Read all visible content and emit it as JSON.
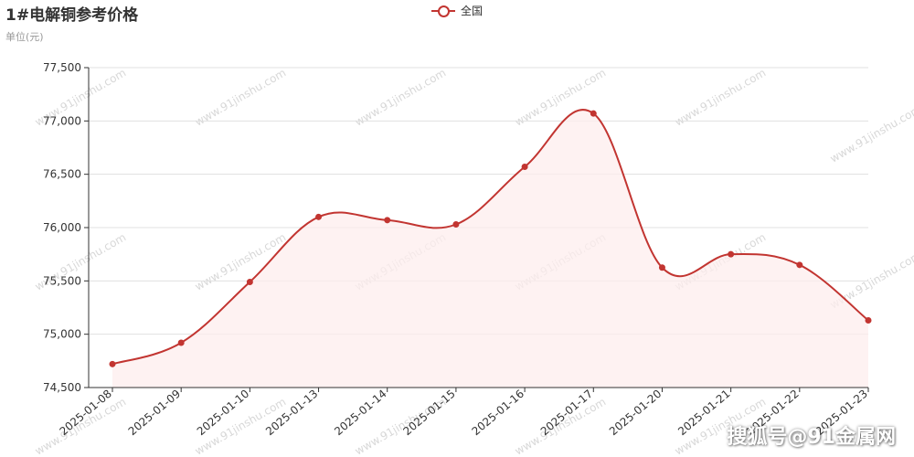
{
  "header": {
    "title": "1#电解铜参考价格",
    "unit_label": "单位(元)"
  },
  "legend": {
    "label": "全国"
  },
  "watermark": {
    "site": "www.91jinshu.com",
    "brand": "搜狐号@91金属网"
  },
  "chart_data": {
    "type": "line",
    "title": "1#电解铜参考价格",
    "ylabel": "单位(元)",
    "xlabel": "",
    "categories": [
      "2025-01-08",
      "2025-01-09",
      "2025-01-10",
      "2025-01-13",
      "2025-01-14",
      "2025-01-15",
      "2025-01-16",
      "2025-01-17",
      "2025-01-20",
      "2025-01-21",
      "2025-01-22",
      "2025-01-23"
    ],
    "series": [
      {
        "name": "全国",
        "values": [
          74720,
          74920,
          75490,
          76100,
          76070,
          76030,
          76570,
          77070,
          75625,
          75750,
          75650,
          75130
        ]
      }
    ],
    "ylim": [
      74500,
      77500
    ],
    "yticks": [
      74500,
      75000,
      75500,
      76000,
      76500,
      77000,
      77500
    ],
    "ytick_labels": [
      "74,500",
      "75,000",
      "75,500",
      "76,000",
      "76,500",
      "77,000",
      "77,500"
    ],
    "smooth": true,
    "area_fill": true,
    "grid": "horizontal",
    "legend_position": "top-center",
    "colors": {
      "line": "#c23531",
      "area": "#fdeeee",
      "grid": "#e0e0e0",
      "axis": "#333333"
    }
  }
}
